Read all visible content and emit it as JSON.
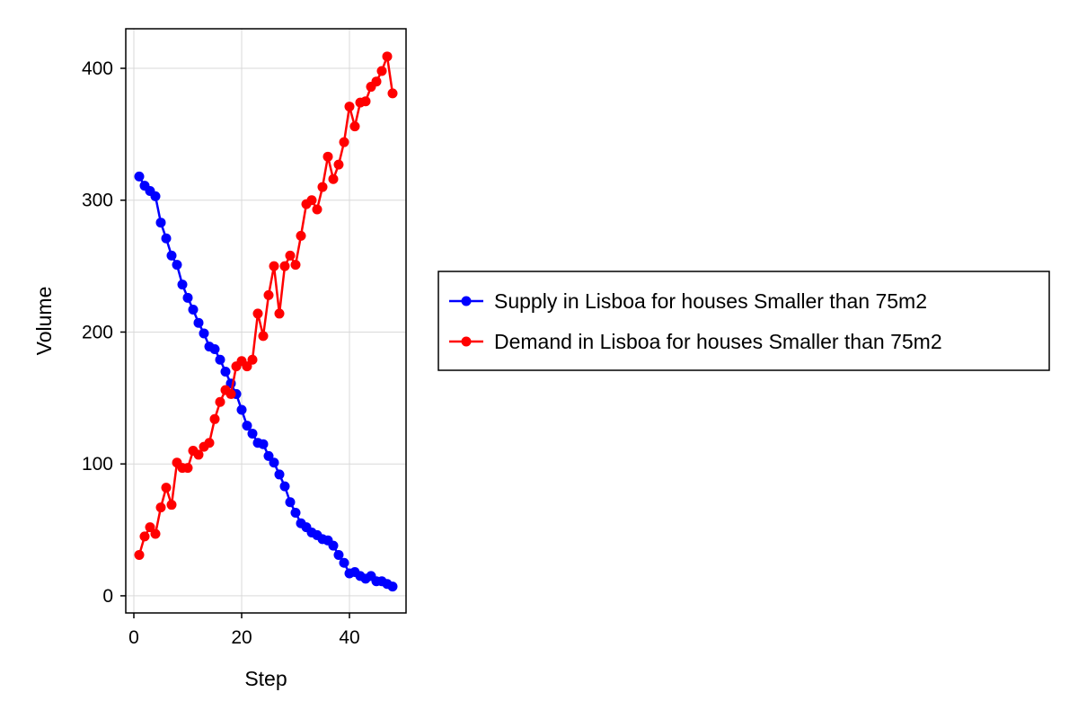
{
  "chart_data": {
    "type": "line",
    "xlabel": "Step",
    "ylabel": "Volume",
    "xlim": [
      -1.5,
      50.5
    ],
    "ylim": [
      -13,
      430
    ],
    "xticks": [
      0,
      20,
      40
    ],
    "xtick_labels": [
      "0",
      "20",
      "40"
    ],
    "yticks": [
      0,
      100,
      200,
      300,
      400
    ],
    "ytick_labels": [
      "0",
      "100",
      "200",
      "300",
      "400"
    ],
    "grid": true,
    "legend_position": "right",
    "x": [
      1,
      2,
      3,
      4,
      5,
      6,
      7,
      8,
      9,
      10,
      11,
      12,
      13,
      14,
      15,
      16,
      17,
      18,
      19,
      20,
      21,
      22,
      23,
      24,
      25,
      26,
      27,
      28,
      29,
      30,
      31,
      32,
      33,
      34,
      35,
      36,
      37,
      38,
      39,
      40,
      41,
      42,
      43,
      44,
      45,
      46,
      47,
      48
    ],
    "series": [
      {
        "name": "Supply in Lisboa for houses Smaller than 75m2",
        "color": "#0000ff",
        "marker": "circle",
        "values": [
          318,
          311,
          307,
          303,
          283,
          271,
          258,
          251,
          236,
          226,
          217,
          207,
          199,
          189,
          187,
          179,
          170,
          161,
          153,
          141,
          129,
          123,
          116,
          115,
          106,
          101,
          92,
          83,
          71,
          63,
          55,
          52,
          48,
          46,
          43,
          42,
          38,
          31,
          25,
          17,
          18,
          15,
          13,
          15,
          11,
          11,
          9,
          7
        ]
      },
      {
        "name": "Demand in Lisboa for houses Smaller than 75m2",
        "color": "#ff0000",
        "marker": "circle",
        "values": [
          31,
          45,
          52,
          47,
          67,
          82,
          69,
          101,
          97,
          97,
          110,
          107,
          113,
          116,
          134,
          147,
          156,
          153,
          174,
          178,
          174,
          179,
          214,
          197,
          228,
          250,
          214,
          250,
          258,
          251,
          273,
          297,
          300,
          293,
          310,
          333,
          316,
          327,
          344,
          371,
          356,
          374,
          375,
          386,
          390,
          398,
          409,
          381
        ]
      }
    ]
  }
}
